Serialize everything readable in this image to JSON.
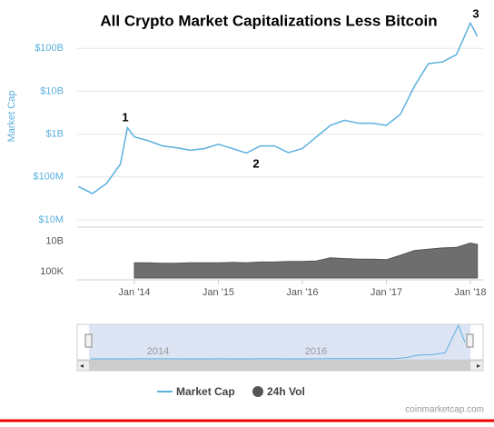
{
  "chart_data": [
    {
      "type": "line",
      "title": "All Crypto Market Capitalizations Less Bitcoin",
      "y_label": "Market Cap",
      "log_scale": true,
      "grid": true,
      "x": [
        "2013-05",
        "2013-07",
        "2013-09",
        "2013-11",
        "2013-12",
        "2014-01",
        "2014-03",
        "2014-05",
        "2014-07",
        "2014-09",
        "2014-11",
        "2015-01",
        "2015-03",
        "2015-05",
        "2015-07",
        "2015-09",
        "2015-11",
        "2016-01",
        "2016-03",
        "2016-05",
        "2016-07",
        "2016-09",
        "2016-11",
        "2017-01",
        "2017-03",
        "2017-05",
        "2017-07",
        "2017-09",
        "2017-11",
        "2018-01",
        "2018-02"
      ],
      "series": [
        {
          "name": "Market Cap",
          "color": "#5bb0de",
          "values": [
            60000000,
            41000000,
            70000000,
            200000000,
            1400000000,
            860000000,
            700000000,
            530000000,
            480000000,
            420000000,
            460000000,
            580000000,
            460000000,
            360000000,
            530000000,
            530000000,
            370000000,
            460000000,
            860000000,
            1600000000,
            2100000000,
            1800000000,
            1800000000,
            1600000000,
            2900000000,
            13000000000,
            44000000000,
            48000000000,
            71000000000,
            390000000000,
            190000000000
          ]
        }
      ],
      "ylim": [
        10000000,
        1000000000000
      ],
      "yticks": [
        {
          "value": 10000000,
          "label": "$10M"
        },
        {
          "value": 100000000,
          "label": "$100M"
        },
        {
          "value": 1000000000,
          "label": "$1B"
        },
        {
          "value": 10000000000,
          "label": "$10B"
        },
        {
          "value": 100000000000,
          "label": "$100B"
        }
      ],
      "xticks": [
        {
          "value": "2014-01",
          "label": "Jan '14"
        },
        {
          "value": "2015-01",
          "label": "Jan '15"
        },
        {
          "value": "2016-01",
          "label": "Jan '16"
        },
        {
          "value": "2017-01",
          "label": "Jan '17"
        },
        {
          "value": "2018-01",
          "label": "Jan '18"
        }
      ],
      "annotations": [
        "1",
        "2",
        "3"
      ]
    },
    {
      "type": "area",
      "log_scale": true,
      "x": [
        "2014-01",
        "2014-03",
        "2014-05",
        "2014-07",
        "2014-09",
        "2014-11",
        "2015-01",
        "2015-03",
        "2015-05",
        "2015-07",
        "2015-09",
        "2015-11",
        "2016-01",
        "2016-03",
        "2016-05",
        "2016-07",
        "2016-09",
        "2016-11",
        "2017-01",
        "2017-03",
        "2017-05",
        "2017-07",
        "2017-09",
        "2017-11",
        "2018-01",
        "2018-02"
      ],
      "series": [
        {
          "name": "24h Vol",
          "color": "#555555",
          "values": [
            3000000,
            3000000,
            2500000,
            2500000,
            3000000,
            3000000,
            3000000,
            3500000,
            3000000,
            4000000,
            4000000,
            5000000,
            5000000,
            6000000,
            20000000,
            15000000,
            12000000,
            12000000,
            10000000,
            50000000,
            300000000,
            500000000,
            800000000,
            1000000000,
            5000000000,
            3000000000
          ]
        }
      ],
      "ylim": [
        10000,
        1000000000000
      ],
      "yticks": [
        {
          "value": 100000,
          "label": "100K"
        },
        {
          "value": 10000000000,
          "label": "10B"
        }
      ]
    }
  ],
  "navigator": {
    "labels": [
      "2014",
      "2016"
    ]
  },
  "credit": "coinmarketcap.com"
}
